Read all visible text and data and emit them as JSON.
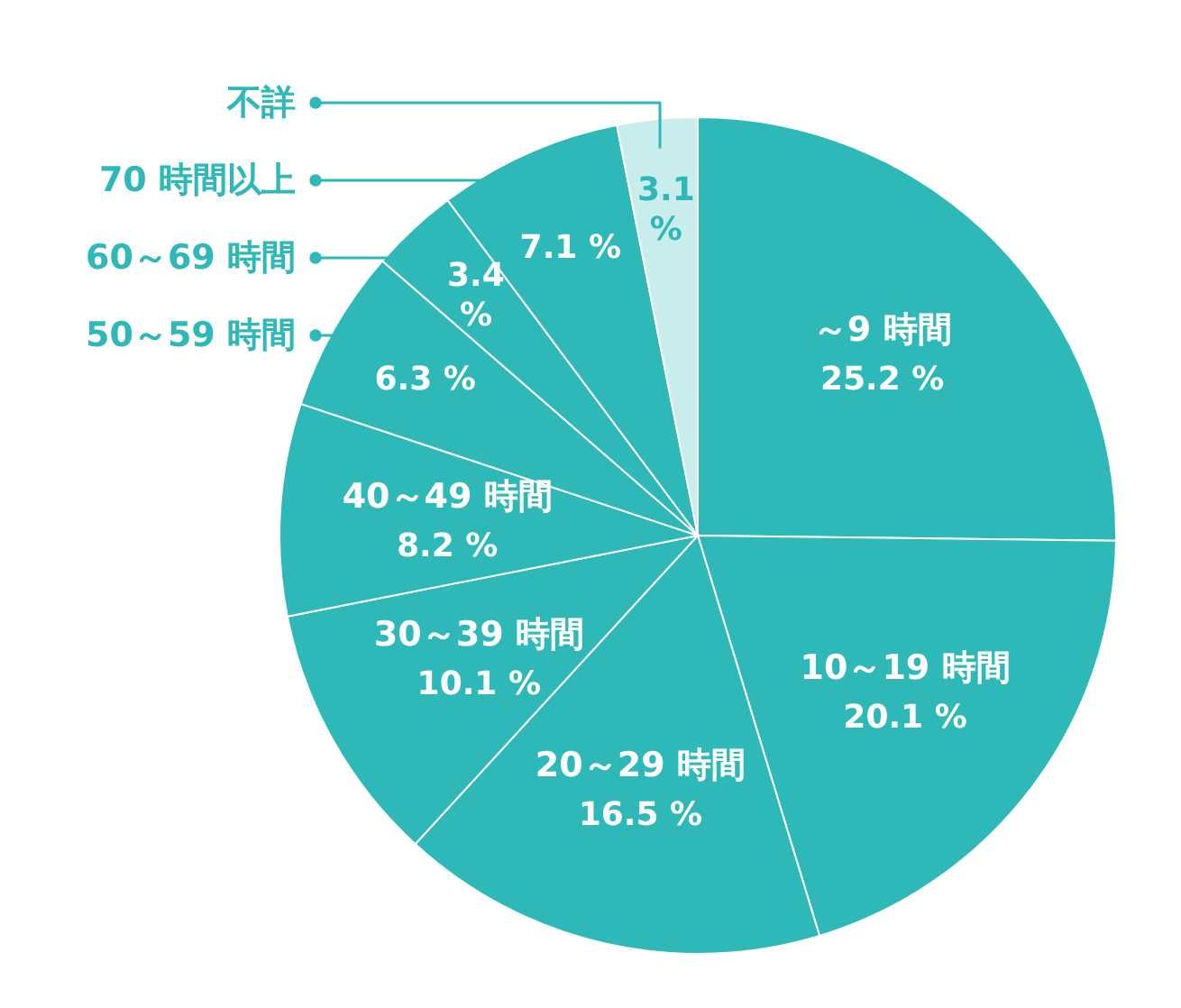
{
  "chart_data": {
    "type": "pie",
    "categories": [
      "～9 時間",
      "10～19 時間",
      "20～29 時間",
      "30～39 時間",
      "40～49 時間",
      "50～59 時間",
      "60～69 時間",
      "70 時間以上",
      "不詳"
    ],
    "values": [
      25.2,
      20.1,
      16.5,
      10.1,
      8.2,
      6.3,
      3.4,
      7.1,
      3.1
    ],
    "value_labels": [
      "25.2 %",
      "20.1 %",
      "16.5 %",
      "10.1 %",
      "8.2 %",
      "6.3 %",
      "3.4 %",
      "7.1 %",
      "3.1 %"
    ],
    "legend": "top left",
    "colors": [
      "#2eb8b8",
      "#2eb8b8",
      "#2eb8b8",
      "#2eb8b8",
      "#2eb8b8",
      "#2eb8b8",
      "#2eb8b8",
      "#2eb8b8",
      "#c9ecec"
    ]
  }
}
